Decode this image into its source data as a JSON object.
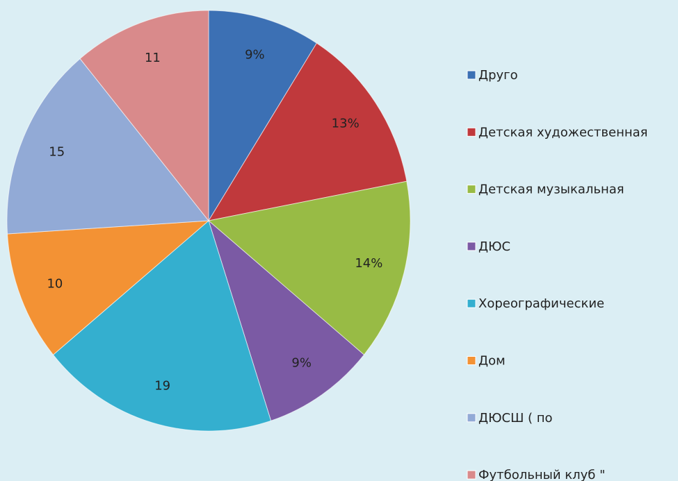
{
  "chart_data": {
    "type": "pie",
    "categories": [
      "Друго",
      "Детская художественная",
      "Детская музыкальная",
      "ДЮС",
      "Хореографические",
      "Дом",
      "ДЮСШ ( по",
      "Футбольный клуб \""
    ],
    "values": [
      9,
      13,
      14,
      9,
      19,
      10,
      15,
      11
    ],
    "value_labels": [
      "9%",
      "13%",
      "14%",
      "9%",
      "19",
      "10",
      "15",
      "11"
    ],
    "colors": [
      "#3c70b4",
      "#c0393c",
      "#98bb45",
      "#7b5aa4",
      "#34afcf",
      "#f39234",
      "#92aad6",
      "#d98a8b"
    ]
  }
}
